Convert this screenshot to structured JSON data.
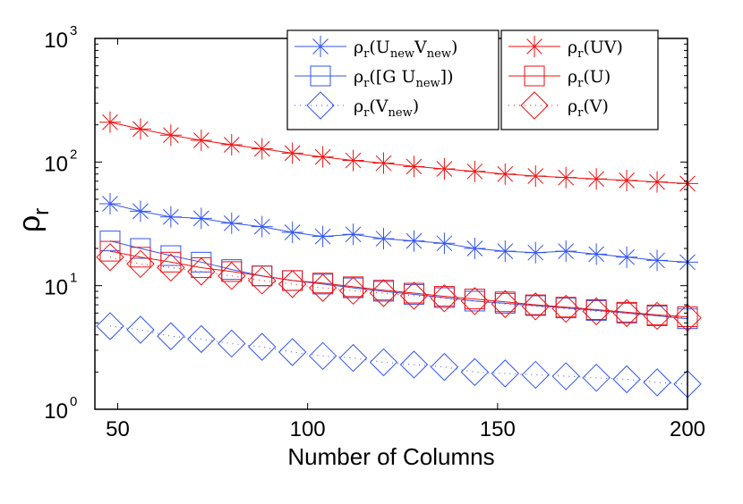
{
  "chart_data": {
    "type": "line",
    "title": "",
    "xlabel": "Number of Columns",
    "ylabel": "ρ",
    "ylabel_sub": "r",
    "xscale": "linear",
    "yscale": "log",
    "xlim": [
      44,
      200
    ],
    "ylim": [
      1,
      1000
    ],
    "grid": false,
    "legend_placement": "top-right",
    "x_ticks": [
      50,
      100,
      150,
      200
    ],
    "x_tick_labels": [
      "50",
      "100",
      "150",
      "200"
    ],
    "y_ticks": [
      1,
      10,
      100,
      1000
    ],
    "y_tick_labels": [
      {
        "base": "10",
        "exp": "0"
      },
      {
        "base": "10",
        "exp": "1"
      },
      {
        "base": "10",
        "exp": "2"
      },
      {
        "base": "10",
        "exp": "3"
      }
    ],
    "x": [
      48,
      56,
      64,
      72,
      80,
      88,
      96,
      104,
      112,
      120,
      128,
      136,
      144,
      152,
      160,
      168,
      176,
      184,
      192,
      200
    ],
    "series": [
      {
        "name": "ρr(UnewVnew)",
        "legend_parts": [
          {
            "t": "ρ"
          },
          {
            "t": "r",
            "sub": true
          },
          {
            "t": "(U"
          },
          {
            "t": "new",
            "sub": true
          },
          {
            "t": "V"
          },
          {
            "t": "new",
            "sub": true
          },
          {
            "t": ")"
          }
        ],
        "color": "#3355ee",
        "line_style": "solid",
        "marker": "star",
        "values": [
          46,
          40,
          36,
          35,
          32,
          30,
          27,
          25,
          26,
          24,
          23,
          22,
          20,
          19,
          18.5,
          19,
          18,
          17,
          16,
          15.5
        ]
      },
      {
        "name": "ρr([G Unew])",
        "legend_parts": [
          {
            "t": "ρ"
          },
          {
            "t": "r",
            "sub": true
          },
          {
            "t": "([G U"
          },
          {
            "t": "new",
            "sub": true
          },
          {
            "t": "])"
          }
        ],
        "color": "#3355ee",
        "line_style": "solid",
        "marker": "square",
        "values": [
          23,
          20,
          17.5,
          15.5,
          13.5,
          12,
          11,
          10.3,
          9.6,
          9,
          8.5,
          8,
          7.5,
          7.2,
          6.9,
          6.6,
          6.3,
          6,
          5.7,
          5.4
        ]
      },
      {
        "name": "ρr(Vnew)",
        "legend_parts": [
          {
            "t": "ρ"
          },
          {
            "t": "r",
            "sub": true
          },
          {
            "t": "(V"
          },
          {
            "t": "new",
            "sub": true
          },
          {
            "t": ")"
          }
        ],
        "color": "#3355ee",
        "line_style": "dotted",
        "marker": "diamond",
        "values": [
          4.7,
          4.4,
          3.9,
          3.7,
          3.4,
          3.2,
          2.9,
          2.7,
          2.6,
          2.4,
          2.3,
          2.2,
          2.0,
          1.95,
          1.9,
          1.85,
          1.8,
          1.75,
          1.65,
          1.6
        ]
      },
      {
        "name": "ρr(UV)",
        "legend_parts": [
          {
            "t": "ρ"
          },
          {
            "t": "r",
            "sub": true
          },
          {
            "t": "(UV)"
          }
        ],
        "color": "#ee1111",
        "line_style": "solid",
        "marker": "star",
        "values": [
          210,
          185,
          165,
          150,
          138,
          128,
          118,
          110,
          103,
          98,
          92,
          88,
          84,
          80,
          77,
          75,
          73,
          71,
          69,
          67
        ]
      },
      {
        "name": "ρr(U)",
        "legend_parts": [
          {
            "t": "ρ"
          },
          {
            "t": "r",
            "sub": true
          },
          {
            "t": "(U)"
          }
        ],
        "color": "#ee1111",
        "line_style": "solid",
        "marker": "square",
        "values": [
          19,
          17,
          15.5,
          14,
          13,
          12,
          11,
          10.5,
          9.8,
          9.2,
          8.7,
          8.2,
          7.8,
          7.4,
          7.0,
          6.7,
          6.4,
          6.1,
          5.8,
          5.6
        ]
      },
      {
        "name": "ρr(V)",
        "legend_parts": [
          {
            "t": "ρ"
          },
          {
            "t": "r",
            "sub": true
          },
          {
            "t": "(V)"
          }
        ],
        "color": "#ee1111",
        "line_style": "dotted",
        "marker": "diamond",
        "values": [
          17,
          15,
          14,
          13,
          12,
          11,
          10.3,
          9.6,
          9.1,
          8.7,
          8.3,
          7.9,
          7.5,
          7.1,
          6.8,
          6.5,
          6.2,
          6.0,
          5.7,
          5.5
        ]
      }
    ]
  }
}
